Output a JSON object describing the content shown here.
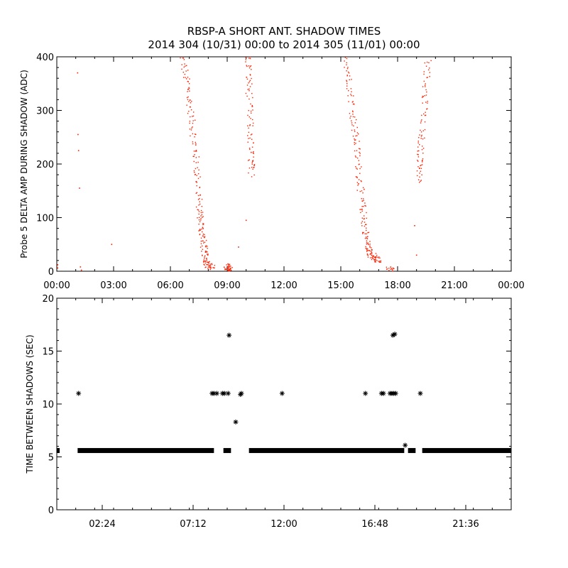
{
  "title_line1": "RBSP-A SHORT ANT. SHADOW TIMES",
  "title_line2": "2014 304 (10/31) 00:00 to 2014 305 (11/01) 00:00",
  "colors": {
    "top_points": "#ff2000",
    "bottom_points": "#000000",
    "axes": "#000000",
    "background": "#ffffff"
  },
  "chart_data": [
    {
      "type": "scatter",
      "ylabel": "Probe 5 DELTA AMP DURING SHADOW (ADC)",
      "xlabel": "",
      "x_unit": "hours",
      "xlim": [
        0,
        24
      ],
      "ylim": [
        0,
        400
      ],
      "x_tick_values": [
        0,
        3,
        6,
        9,
        12,
        15,
        18,
        21,
        24
      ],
      "x_tick_labels": [
        "00:00",
        "03:00",
        "06:00",
        "09:00",
        "12:00",
        "15:00",
        "18:00",
        "21:00",
        "00:00"
      ],
      "y_tick_values": [
        0,
        100,
        200,
        300,
        400
      ],
      "y_tick_labels": [
        "0",
        "100",
        "200",
        "300",
        "400"
      ],
      "grid": false,
      "marker": "dot",
      "color": "#ff2000",
      "segments": [
        {
          "x": [
            6.6,
            6.9,
            7.1,
            7.3,
            7.45,
            7.55,
            7.65,
            7.75,
            7.85,
            8.0,
            8.2
          ],
          "y": [
            400,
            350,
            290,
            230,
            170,
            110,
            80,
            50,
            25,
            12,
            5
          ]
        },
        {
          "x": [
            8.95,
            9.05,
            9.15
          ],
          "y": [
            3,
            6,
            10
          ]
        },
        {
          "x": [
            10.1,
            10.15,
            10.2,
            10.25,
            10.3
          ],
          "y": [
            400,
            350,
            280,
            220,
            180
          ]
        },
        {
          "x": [
            15.3,
            15.5,
            15.7,
            15.85,
            16.0,
            16.15,
            16.3,
            16.45,
            16.6,
            16.8,
            17.0
          ],
          "y": [
            400,
            340,
            280,
            230,
            170,
            120,
            75,
            45,
            30,
            25,
            18
          ]
        },
        {
          "x": [
            17.5,
            17.8
          ],
          "y": [
            2,
            3
          ]
        },
        {
          "x": [
            19.1,
            19.2,
            19.3,
            19.45,
            19.6
          ],
          "y": [
            170,
            210,
            260,
            330,
            400
          ]
        }
      ],
      "sparse_points": {
        "x": [
          0.05,
          0.05,
          1.1,
          1.12,
          1.15,
          1.2,
          1.25,
          1.3,
          2.9,
          10.0,
          9.6,
          18.9,
          19.0
        ],
        "y": [
          12,
          6,
          370,
          255,
          225,
          155,
          8,
          2,
          50,
          95,
          45,
          85,
          30
        ]
      }
    },
    {
      "type": "scatter",
      "ylabel": "TIME BETWEEN SHADOWS (SEC)",
      "xlabel": "",
      "x_unit": "hours",
      "xlim": [
        0,
        24
      ],
      "ylim": [
        0,
        20
      ],
      "x_tick_values": [
        2.4,
        7.2,
        12.0,
        16.8,
        21.6
      ],
      "x_tick_labels": [
        "02:24",
        "07:12",
        "12:00",
        "16:48",
        "21:36"
      ],
      "y_tick_values": [
        0,
        5,
        10,
        15,
        20
      ],
      "y_tick_labels": [
        "0",
        "5",
        "10",
        "15",
        "20"
      ],
      "grid": false,
      "marker": "asterisk",
      "color": "#000000",
      "baseline": {
        "value": 5.6,
        "ranges": [
          [
            0,
            0.15
          ],
          [
            1.1,
            8.3
          ],
          [
            8.8,
            9.2
          ],
          [
            10.15,
            18.35
          ],
          [
            18.55,
            18.95
          ],
          [
            19.3,
            24.0
          ]
        ]
      },
      "points": {
        "x": [
          1.15,
          8.2,
          8.3,
          8.45,
          8.75,
          8.85,
          9.05,
          9.1,
          9.45,
          9.7,
          9.75,
          11.9,
          16.3,
          17.15,
          17.25,
          17.6,
          17.7,
          17.8,
          17.9,
          17.75,
          17.85,
          18.4,
          19.2
        ],
        "y": [
          11,
          11,
          11,
          11,
          11,
          11,
          11,
          16.5,
          8.3,
          10.9,
          11,
          11,
          11,
          11,
          11,
          11,
          11,
          11,
          11,
          16.5,
          16.6,
          6.1,
          11
        ]
      }
    }
  ]
}
